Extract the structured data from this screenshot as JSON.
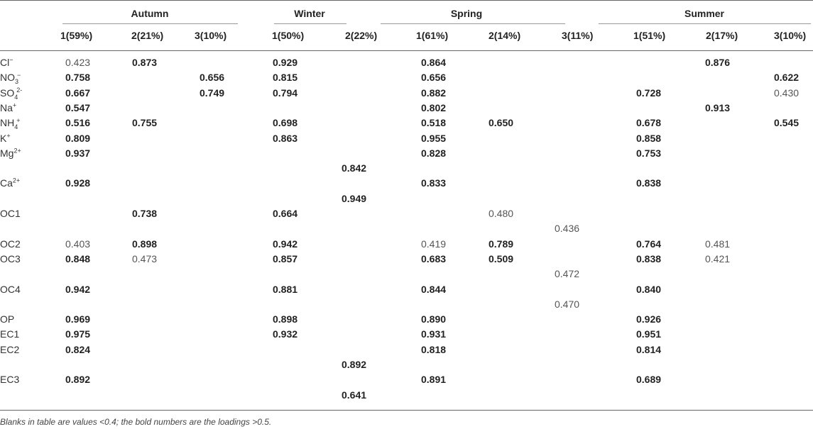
{
  "seasons": [
    "Autumn",
    "Winter",
    "Spring",
    "Summer"
  ],
  "factors": [
    "1(59%)",
    "2(21%)",
    "3(10%)",
    "1(50%)",
    "2(22%)",
    "1(61%)",
    "2(14%)",
    "3(11%)",
    "1(51%)",
    "2(17%)",
    "3(10%)"
  ],
  "row_labels": [
    {
      "base": "Cl",
      "sup": "−",
      "sub": ""
    },
    {
      "base": "NO",
      "sup": "−",
      "sub": "3"
    },
    {
      "base": "SO",
      "sup": "2-",
      "sub": "4"
    },
    {
      "base": "Na",
      "sup": "+",
      "sub": ""
    },
    {
      "base": "NH",
      "sup": "+",
      "sub": "4"
    },
    {
      "base": "K",
      "sup": "+",
      "sub": ""
    },
    {
      "base": "Mg",
      "sup": "2+",
      "sub": ""
    },
    {
      "base": "Ca",
      "sup": "2+",
      "sub": ""
    },
    {
      "base": "OC1",
      "sup": "",
      "sub": ""
    },
    {
      "base": "OC2",
      "sup": "",
      "sub": ""
    },
    {
      "base": "OC3",
      "sup": "",
      "sub": ""
    },
    {
      "base": "OC4",
      "sup": "",
      "sub": ""
    },
    {
      "base": "OP",
      "sup": "",
      "sub": ""
    },
    {
      "base": "EC1",
      "sup": "",
      "sub": ""
    },
    {
      "base": "EC2",
      "sup": "",
      "sub": ""
    },
    {
      "base": "EC3",
      "sup": "",
      "sub": ""
    }
  ],
  "cells": [
    {
      "line": 0,
      "col": 0,
      "v": "0.423",
      "b": false
    },
    {
      "line": 0,
      "col": 1,
      "v": "0.873",
      "b": true
    },
    {
      "line": 0,
      "col": 3,
      "v": "0.929",
      "b": true
    },
    {
      "line": 0,
      "col": 5,
      "v": "0.864",
      "b": true
    },
    {
      "line": 0,
      "col": 9,
      "v": "0.876",
      "b": true
    },
    {
      "line": 1,
      "col": 0,
      "v": "0.758",
      "b": true
    },
    {
      "line": 1,
      "col": 2,
      "v": "0.656",
      "b": true
    },
    {
      "line": 1,
      "col": 3,
      "v": "0.815",
      "b": true
    },
    {
      "line": 1,
      "col": 5,
      "v": "0.656",
      "b": true
    },
    {
      "line": 1,
      "col": 10,
      "v": "0.622",
      "b": true
    },
    {
      "line": 2,
      "col": 0,
      "v": "0.667",
      "b": true
    },
    {
      "line": 2,
      "col": 2,
      "v": "0.749",
      "b": true
    },
    {
      "line": 2,
      "col": 3,
      "v": "0.794",
      "b": true
    },
    {
      "line": 2,
      "col": 5,
      "v": "0.882",
      "b": true
    },
    {
      "line": 2,
      "col": 8,
      "v": "0.728",
      "b": true
    },
    {
      "line": 2,
      "col": 10,
      "v": "0.430",
      "b": false
    },
    {
      "line": 3,
      "col": 0,
      "v": "0.547",
      "b": true
    },
    {
      "line": 3,
      "col": 5,
      "v": "0.802",
      "b": true
    },
    {
      "line": 3,
      "col": 9,
      "v": "0.913",
      "b": true
    },
    {
      "line": 4,
      "col": 0,
      "v": "0.516",
      "b": true
    },
    {
      "line": 4,
      "col": 1,
      "v": "0.755",
      "b": true
    },
    {
      "line": 4,
      "col": 3,
      "v": "0.698",
      "b": true
    },
    {
      "line": 4,
      "col": 5,
      "v": "0.518",
      "b": true
    },
    {
      "line": 4,
      "col": 6,
      "v": "0.650",
      "b": true
    },
    {
      "line": 4,
      "col": 8,
      "v": "0.678",
      "b": true
    },
    {
      "line": 4,
      "col": 10,
      "v": "0.545",
      "b": true
    },
    {
      "line": 5,
      "col": 0,
      "v": "0.809",
      "b": true
    },
    {
      "line": 5,
      "col": 3,
      "v": "0.863",
      "b": true
    },
    {
      "line": 5,
      "col": 5,
      "v": "0.955",
      "b": true
    },
    {
      "line": 5,
      "col": 8,
      "v": "0.858",
      "b": true
    },
    {
      "line": 6,
      "col": 0,
      "v": "0.937",
      "b": true
    },
    {
      "line": 6,
      "col": 5,
      "v": "0.828",
      "b": true
    },
    {
      "line": 6,
      "col": 8,
      "v": "0.753",
      "b": true
    },
    {
      "line": 7,
      "col": 4,
      "v": "0.842",
      "b": true
    },
    {
      "line": 8,
      "col": 0,
      "v": "0.928",
      "b": true
    },
    {
      "line": 8,
      "col": 5,
      "v": "0.833",
      "b": true
    },
    {
      "line": 8,
      "col": 8,
      "v": "0.838",
      "b": true
    },
    {
      "line": 9,
      "col": 4,
      "v": "0.949",
      "b": true
    },
    {
      "line": 10,
      "col": 1,
      "v": "0.738",
      "b": true
    },
    {
      "line": 10,
      "col": 3,
      "v": "0.664",
      "b": true
    },
    {
      "line": 10,
      "col": 6,
      "v": "0.480",
      "b": false
    },
    {
      "line": 11,
      "col": 7,
      "v": "0.436",
      "b": false
    },
    {
      "line": 12,
      "col": 0,
      "v": "0.403",
      "b": false
    },
    {
      "line": 12,
      "col": 1,
      "v": "0.898",
      "b": true
    },
    {
      "line": 12,
      "col": 3,
      "v": "0.942",
      "b": true
    },
    {
      "line": 12,
      "col": 5,
      "v": "0.419",
      "b": false
    },
    {
      "line": 12,
      "col": 6,
      "v": "0.789",
      "b": true
    },
    {
      "line": 12,
      "col": 8,
      "v": "0.764",
      "b": true
    },
    {
      "line": 12,
      "col": 9,
      "v": "0.481",
      "b": false
    },
    {
      "line": 13,
      "col": 0,
      "v": "0.848",
      "b": true
    },
    {
      "line": 13,
      "col": 1,
      "v": "0.473",
      "b": false
    },
    {
      "line": 13,
      "col": 3,
      "v": "0.857",
      "b": true
    },
    {
      "line": 13,
      "col": 5,
      "v": "0.683",
      "b": true
    },
    {
      "line": 13,
      "col": 6,
      "v": "0.509",
      "b": true
    },
    {
      "line": 13,
      "col": 8,
      "v": "0.838",
      "b": true
    },
    {
      "line": 13,
      "col": 9,
      "v": "0.421",
      "b": false
    },
    {
      "line": 14,
      "col": 7,
      "v": "0.472",
      "b": false
    },
    {
      "line": 15,
      "col": 0,
      "v": "0.942",
      "b": true
    },
    {
      "line": 15,
      "col": 3,
      "v": "0.881",
      "b": true
    },
    {
      "line": 15,
      "col": 5,
      "v": "0.844",
      "b": true
    },
    {
      "line": 15,
      "col": 8,
      "v": "0.840",
      "b": true
    },
    {
      "line": 16,
      "col": 7,
      "v": "0.470",
      "b": false
    },
    {
      "line": 17,
      "col": 0,
      "v": "0.969",
      "b": true
    },
    {
      "line": 17,
      "col": 3,
      "v": "0.898",
      "b": true
    },
    {
      "line": 17,
      "col": 5,
      "v": "0.890",
      "b": true
    },
    {
      "line": 17,
      "col": 8,
      "v": "0.926",
      "b": true
    },
    {
      "line": 18,
      "col": 0,
      "v": "0.975",
      "b": true
    },
    {
      "line": 18,
      "col": 3,
      "v": "0.932",
      "b": true
    },
    {
      "line": 18,
      "col": 5,
      "v": "0.931",
      "b": true
    },
    {
      "line": 18,
      "col": 8,
      "v": "0.951",
      "b": true
    },
    {
      "line": 19,
      "col": 0,
      "v": "0.824",
      "b": true
    },
    {
      "line": 19,
      "col": 5,
      "v": "0.818",
      "b": true
    },
    {
      "line": 19,
      "col": 8,
      "v": "0.814",
      "b": true
    },
    {
      "line": 20,
      "col": 4,
      "v": "0.892",
      "b": true
    },
    {
      "line": 21,
      "col": 0,
      "v": "0.892",
      "b": true
    },
    {
      "line": 21,
      "col": 5,
      "v": "0.891",
      "b": true
    },
    {
      "line": 21,
      "col": 8,
      "v": "0.689",
      "b": true
    },
    {
      "line": 22,
      "col": 4,
      "v": "0.641",
      "b": true
    }
  ],
  "note": "Blanks in table are values <0.4; the bold numbers are the loadings >0.5."
}
